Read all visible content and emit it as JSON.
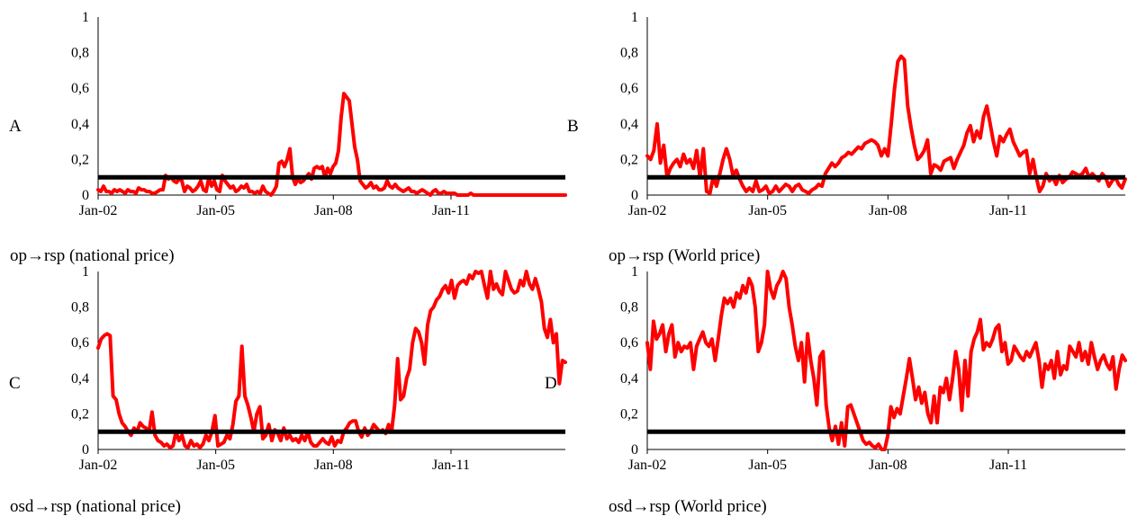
{
  "panels": [
    {
      "id": "A",
      "letter": "A",
      "caption": "op→rsp (national price)"
    },
    {
      "id": "B",
      "letter": "B",
      "caption": "op→rsp (World price)"
    },
    {
      "id": "C",
      "letter": "C",
      "caption": "osd→rsp (national price)"
    },
    {
      "id": "D",
      "letter": "D",
      "caption": "osd→rsp (World price)"
    }
  ],
  "chart_data": [
    {
      "type": "line",
      "panel": "A",
      "x_tick_labels": [
        "Jan-02",
        "Jan-05",
        "Jan-08",
        "Jan-11"
      ],
      "y_tick_labels": [
        "0",
        "0,2",
        "0,4",
        "0,6",
        "0,8",
        "1"
      ],
      "ylim": [
        0,
        1
      ],
      "x_start": "2002-01",
      "x_end": "2013-12",
      "threshold": 0.1,
      "colors": {
        "series": "#ff0000",
        "threshold": "#000000"
      },
      "values": [
        0.03,
        0.02,
        0.05,
        0.02,
        0.02,
        0.01,
        0.03,
        0.02,
        0.03,
        0.02,
        0.01,
        0.03,
        0.02,
        0.02,
        0.01,
        0.04,
        0.03,
        0.03,
        0.02,
        0.02,
        0.01,
        0.01,
        0.02,
        0.03,
        0.03,
        0.11,
        0.09,
        0.1,
        0.08,
        0.07,
        0.09,
        0.08,
        0.02,
        0.05,
        0.04,
        0.02,
        0.03,
        0.05,
        0.08,
        0.03,
        0.02,
        0.1,
        0.05,
        0.08,
        0.03,
        0.02,
        0.11,
        0.08,
        0.06,
        0.04,
        0.05,
        0.02,
        0.03,
        0.05,
        0.04,
        0.06,
        0.02,
        0.02,
        0.01,
        0.02,
        0.01,
        0.05,
        0.02,
        0.01,
        0.0,
        0.02,
        0.05,
        0.18,
        0.19,
        0.16,
        0.2,
        0.26,
        0.1,
        0.06,
        0.09,
        0.07,
        0.08,
        0.1,
        0.12,
        0.09,
        0.15,
        0.16,
        0.15,
        0.16,
        0.1,
        0.15,
        0.12,
        0.16,
        0.18,
        0.25,
        0.44,
        0.57,
        0.55,
        0.53,
        0.4,
        0.27,
        0.2,
        0.08,
        0.06,
        0.04,
        0.05,
        0.07,
        0.04,
        0.05,
        0.03,
        0.03,
        0.04,
        0.08,
        0.05,
        0.04,
        0.06,
        0.04,
        0.03,
        0.02,
        0.03,
        0.04,
        0.02,
        0.02,
        0.01,
        0.02,
        0.03,
        0.02,
        0.01,
        0.0,
        0.02,
        0.03,
        0.01,
        0.01,
        0.02,
        0.01,
        0.01,
        0.01,
        0.01,
        0.0,
        0.0,
        0.0,
        0.0,
        0.0,
        0.01,
        0.0,
        0.0,
        0.0,
        0.0,
        0.0,
        0.0,
        0.0,
        0.0,
        0.0,
        0.0,
        0.0,
        0.0,
        0.0,
        0.0,
        0.0,
        0.0,
        0.0,
        0.0,
        0.0,
        0.0,
        0.0,
        0.0,
        0.0,
        0.0,
        0.0,
        0.0,
        0.0,
        0.0,
        0.0,
        0.0,
        0.0,
        0.0,
        0.0,
        0.0,
        0.0
      ]
    },
    {
      "type": "line",
      "panel": "B",
      "x_tick_labels": [
        "Jan-02",
        "Jan-05",
        "Jan-08",
        "Jan-11"
      ],
      "y_tick_labels": [
        "0",
        "0,2",
        "0,4",
        "0,6",
        "0,8",
        "1"
      ],
      "ylim": [
        0,
        1
      ],
      "x_start": "2002-01",
      "x_end": "2013-12",
      "threshold": 0.1,
      "colors": {
        "series": "#ff0000",
        "threshold": "#000000"
      },
      "values": [
        0.22,
        0.2,
        0.25,
        0.4,
        0.18,
        0.28,
        0.1,
        0.15,
        0.18,
        0.2,
        0.16,
        0.23,
        0.18,
        0.2,
        0.15,
        0.25,
        0.1,
        0.26,
        0.02,
        0.01,
        0.1,
        0.05,
        0.12,
        0.2,
        0.26,
        0.2,
        0.11,
        0.14,
        0.09,
        0.05,
        0.02,
        0.04,
        0.02,
        0.08,
        0.02,
        0.03,
        0.05,
        0.01,
        0.02,
        0.05,
        0.02,
        0.04,
        0.06,
        0.05,
        0.02,
        0.05,
        0.06,
        0.03,
        0.02,
        0.01,
        0.03,
        0.04,
        0.06,
        0.05,
        0.12,
        0.15,
        0.18,
        0.16,
        0.18,
        0.21,
        0.22,
        0.24,
        0.23,
        0.25,
        0.27,
        0.26,
        0.29,
        0.3,
        0.31,
        0.3,
        0.28,
        0.22,
        0.26,
        0.22,
        0.4,
        0.6,
        0.75,
        0.78,
        0.76,
        0.5,
        0.38,
        0.28,
        0.2,
        0.22,
        0.25,
        0.31,
        0.12,
        0.17,
        0.16,
        0.14,
        0.19,
        0.2,
        0.21,
        0.15,
        0.2,
        0.24,
        0.28,
        0.35,
        0.39,
        0.3,
        0.36,
        0.32,
        0.44,
        0.5,
        0.4,
        0.3,
        0.22,
        0.33,
        0.3,
        0.34,
        0.37,
        0.3,
        0.26,
        0.22,
        0.24,
        0.25,
        0.12,
        0.2,
        0.1,
        0.02,
        0.05,
        0.12,
        0.08,
        0.1,
        0.06,
        0.11,
        0.07,
        0.09,
        0.1,
        0.13,
        0.12,
        0.11,
        0.12,
        0.15,
        0.1,
        0.12,
        0.1,
        0.08,
        0.12,
        0.1,
        0.05,
        0.08,
        0.1,
        0.06,
        0.04,
        0.09
      ]
    },
    {
      "type": "line",
      "panel": "C",
      "x_tick_labels": [
        "Jan-02",
        "Jan-05",
        "Jan-08",
        "Jan-11"
      ],
      "y_tick_labels": [
        "0",
        "0,2",
        "0,4",
        "0,6",
        "0,8",
        "1"
      ],
      "ylim": [
        0,
        1
      ],
      "x_start": "2002-01",
      "x_end": "2013-12",
      "threshold": 0.1,
      "colors": {
        "series": "#ff0000",
        "threshold": "#000000"
      },
      "values": [
        0.57,
        0.62,
        0.64,
        0.65,
        0.64,
        0.3,
        0.28,
        0.2,
        0.15,
        0.13,
        0.1,
        0.08,
        0.12,
        0.1,
        0.15,
        0.13,
        0.12,
        0.1,
        0.21,
        0.08,
        0.05,
        0.04,
        0.02,
        0.03,
        0.01,
        0.02,
        0.1,
        0.05,
        0.08,
        0.02,
        0.01,
        0.05,
        0.02,
        0.03,
        0.01,
        0.03,
        0.08,
        0.05,
        0.1,
        0.19,
        0.02,
        0.03,
        0.04,
        0.08,
        0.06,
        0.14,
        0.27,
        0.3,
        0.58,
        0.3,
        0.25,
        0.18,
        0.1,
        0.2,
        0.24,
        0.06,
        0.08,
        0.14,
        0.05,
        0.11,
        0.09,
        0.05,
        0.12,
        0.06,
        0.08,
        0.05,
        0.06,
        0.04,
        0.08,
        0.05,
        0.1,
        0.04,
        0.02,
        0.02,
        0.04,
        0.06,
        0.04,
        0.03,
        0.07,
        0.02,
        0.05,
        0.04,
        0.1,
        0.12,
        0.15,
        0.16,
        0.16,
        0.1,
        0.07,
        0.12,
        0.08,
        0.1,
        0.14,
        0.12,
        0.1,
        0.11,
        0.09,
        0.14,
        0.1,
        0.25,
        0.51,
        0.28,
        0.3,
        0.4,
        0.45,
        0.6,
        0.68,
        0.66,
        0.6,
        0.48,
        0.7,
        0.78,
        0.8,
        0.84,
        0.86,
        0.9,
        0.92,
        0.88,
        0.95,
        0.85,
        0.92,
        0.94,
        0.95,
        0.93,
        0.98,
        0.96,
        1.0,
        0.99,
        1.0,
        0.92,
        0.85,
        1.0,
        0.9,
        0.93,
        0.89,
        0.87,
        1.0,
        0.95,
        0.9,
        0.88,
        0.89,
        0.95,
        0.92,
        1.0,
        0.93,
        0.9,
        0.96,
        0.9,
        0.83,
        0.68,
        0.63,
        0.73,
        0.6,
        0.65,
        0.37,
        0.5,
        0.49
      ]
    },
    {
      "type": "line",
      "panel": "D",
      "x_tick_labels": [
        "Jan-02",
        "Jan-05",
        "Jan-08",
        "Jan-11"
      ],
      "y_tick_labels": [
        "0",
        "0,2",
        "0,4",
        "0,6",
        "0,8",
        "1"
      ],
      "ylim": [
        0,
        1
      ],
      "x_start": "2002-01",
      "x_end": "2013-12",
      "threshold": 0.1,
      "colors": {
        "series": "#ff0000",
        "threshold": "#000000"
      },
      "values": [
        0.6,
        0.45,
        0.72,
        0.62,
        0.65,
        0.7,
        0.55,
        0.65,
        0.7,
        0.52,
        0.6,
        0.55,
        0.58,
        0.57,
        0.6,
        0.45,
        0.58,
        0.62,
        0.66,
        0.6,
        0.58,
        0.62,
        0.5,
        0.62,
        0.75,
        0.85,
        0.82,
        0.85,
        0.8,
        0.88,
        0.85,
        0.92,
        0.88,
        0.96,
        0.92,
        0.8,
        0.55,
        0.6,
        0.7,
        1.0,
        0.9,
        0.85,
        0.92,
        0.95,
        1.0,
        0.96,
        0.8,
        0.7,
        0.58,
        0.5,
        0.6,
        0.38,
        0.65,
        0.5,
        0.4,
        0.25,
        0.52,
        0.55,
        0.25,
        0.12,
        0.05,
        0.13,
        0.03,
        0.15,
        0.02,
        0.24,
        0.25,
        0.2,
        0.15,
        0.1,
        0.05,
        0.03,
        0.04,
        0.02,
        0.01,
        0.03,
        0.0,
        0.0,
        0.08,
        0.24,
        0.18,
        0.23,
        0.2,
        0.3,
        0.4,
        0.51,
        0.4,
        0.28,
        0.35,
        0.26,
        0.32,
        0.2,
        0.15,
        0.3,
        0.15,
        0.35,
        0.32,
        0.4,
        0.28,
        0.4,
        0.55,
        0.45,
        0.22,
        0.5,
        0.3,
        0.55,
        0.62,
        0.66,
        0.73,
        0.56,
        0.6,
        0.58,
        0.62,
        0.68,
        0.7,
        0.55,
        0.6,
        0.48,
        0.5,
        0.58,
        0.55,
        0.52,
        0.5,
        0.55,
        0.52,
        0.56,
        0.6,
        0.5,
        0.35,
        0.48,
        0.45,
        0.5,
        0.4,
        0.55,
        0.42,
        0.47,
        0.45,
        0.58,
        0.55,
        0.52,
        0.6,
        0.5,
        0.55,
        0.48,
        0.6,
        0.52,
        0.45,
        0.5,
        0.53,
        0.48,
        0.45,
        0.52,
        0.34,
        0.45,
        0.53,
        0.5
      ]
    }
  ]
}
